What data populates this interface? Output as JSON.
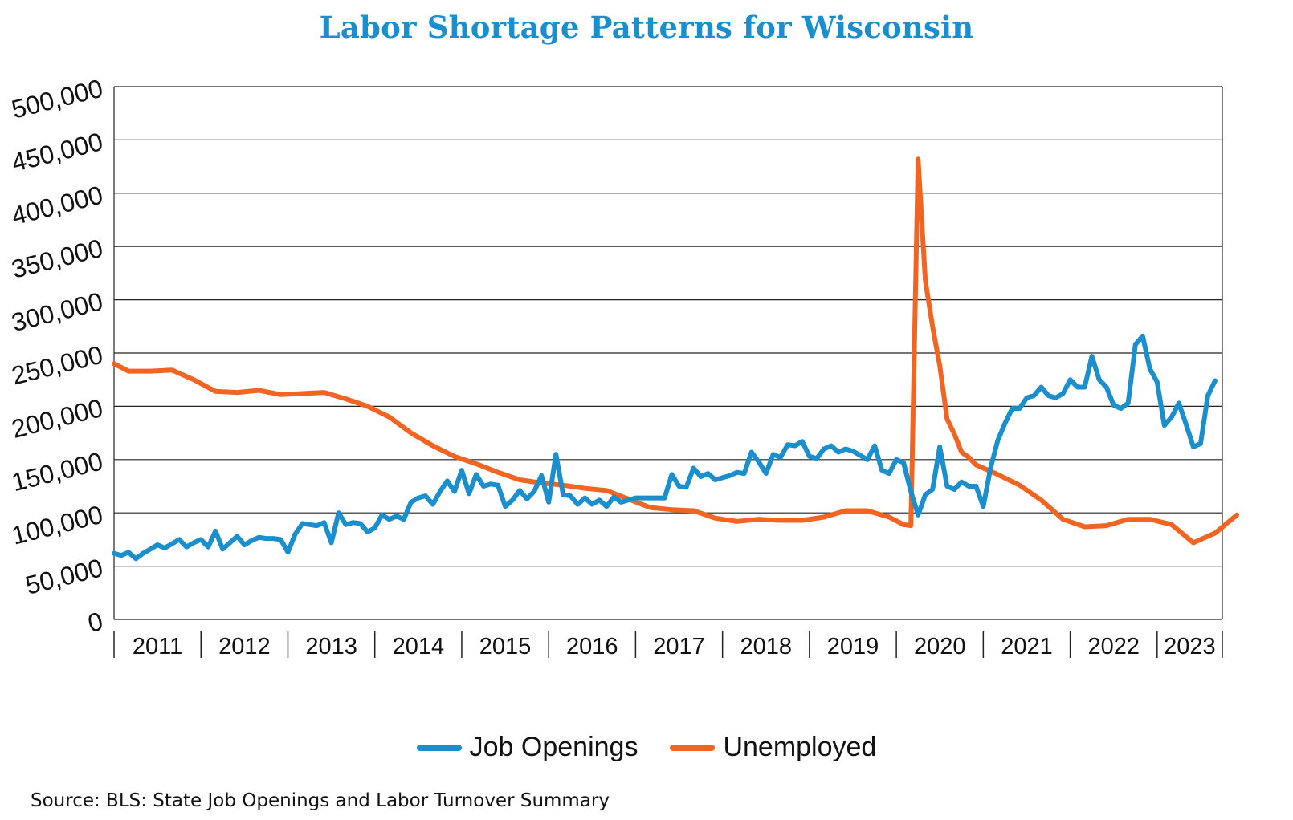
{
  "chart_data": {
    "type": "line",
    "title": "Labor Shortage Patterns for Wisconsin",
    "x_tick_labels": [
      "2011",
      "2012",
      "2013",
      "2014",
      "2015",
      "2016",
      "2017",
      "2018",
      "2019",
      "2020",
      "2021",
      "2022",
      "2023"
    ],
    "y_tick_labels": [
      "0",
      "50,000",
      "100,000",
      "150,000",
      "200,000",
      "250,000",
      "300,000",
      "350,000",
      "400,000",
      "450,000",
      "500,000"
    ],
    "ylim": [
      0,
      500000
    ],
    "grid": true,
    "legend_position": "bottom",
    "series": [
      {
        "name": "Job Openings",
        "color": "#1b8fcd",
        "points": [
          [
            "2011-01",
            62000
          ],
          [
            "2011-02",
            60000
          ],
          [
            "2011-03",
            63000
          ],
          [
            "2011-04",
            57000
          ],
          [
            "2011-05",
            62000
          ],
          [
            "2011-06",
            66000
          ],
          [
            "2011-07",
            70000
          ],
          [
            "2011-08",
            67000
          ],
          [
            "2011-09",
            71000
          ],
          [
            "2011-10",
            75000
          ],
          [
            "2011-11",
            68000
          ],
          [
            "2011-12",
            72000
          ],
          [
            "2012-01",
            75000
          ],
          [
            "2012-02",
            68000
          ],
          [
            "2012-03",
            83000
          ],
          [
            "2012-04",
            66000
          ],
          [
            "2012-05",
            72000
          ],
          [
            "2012-06",
            78000
          ],
          [
            "2012-07",
            70000
          ],
          [
            "2012-08",
            74000
          ],
          [
            "2012-09",
            77000
          ],
          [
            "2012-10",
            76000
          ],
          [
            "2012-11",
            76000
          ],
          [
            "2012-12",
            75000
          ],
          [
            "2013-01",
            63000
          ],
          [
            "2013-02",
            80000
          ],
          [
            "2013-03",
            90000
          ],
          [
            "2013-04",
            89000
          ],
          [
            "2013-05",
            88000
          ],
          [
            "2013-06",
            91000
          ],
          [
            "2013-07",
            72000
          ],
          [
            "2013-08",
            100000
          ],
          [
            "2013-09",
            89000
          ],
          [
            "2013-10",
            91000
          ],
          [
            "2013-11",
            90000
          ],
          [
            "2013-12",
            82000
          ],
          [
            "2014-01",
            86000
          ],
          [
            "2014-02",
            98000
          ],
          [
            "2014-03",
            94000
          ],
          [
            "2014-04",
            97000
          ],
          [
            "2014-05",
            94000
          ],
          [
            "2014-06",
            110000
          ],
          [
            "2014-07",
            114000
          ],
          [
            "2014-08",
            116000
          ],
          [
            "2014-09",
            108000
          ],
          [
            "2014-10",
            120000
          ],
          [
            "2014-11",
            130000
          ],
          [
            "2014-12",
            120000
          ],
          [
            "2015-01",
            140000
          ],
          [
            "2015-02",
            118000
          ],
          [
            "2015-03",
            136000
          ],
          [
            "2015-04",
            125000
          ],
          [
            "2015-05",
            127000
          ],
          [
            "2015-06",
            126000
          ],
          [
            "2015-07",
            106000
          ],
          [
            "2015-08",
            112000
          ],
          [
            "2015-09",
            121000
          ],
          [
            "2015-10",
            113000
          ],
          [
            "2015-11",
            120000
          ],
          [
            "2015-12",
            135000
          ],
          [
            "2016-01",
            110000
          ],
          [
            "2016-02",
            155000
          ],
          [
            "2016-03",
            117000
          ],
          [
            "2016-04",
            116000
          ],
          [
            "2016-05",
            108000
          ],
          [
            "2016-06",
            114000
          ],
          [
            "2016-07",
            108000
          ],
          [
            "2016-08",
            112000
          ],
          [
            "2016-09",
            106000
          ],
          [
            "2016-10",
            115000
          ],
          [
            "2016-11",
            110000
          ],
          [
            "2016-12",
            112000
          ],
          [
            "2017-01",
            114000
          ],
          [
            "2017-02",
            114000
          ],
          [
            "2017-03",
            114000
          ],
          [
            "2017-04",
            114000
          ],
          [
            "2017-05",
            114000
          ],
          [
            "2017-06",
            136000
          ],
          [
            "2017-07",
            125000
          ],
          [
            "2017-08",
            124000
          ],
          [
            "2017-09",
            142000
          ],
          [
            "2017-10",
            134000
          ],
          [
            "2017-11",
            137000
          ],
          [
            "2017-12",
            131000
          ],
          [
            "2018-01",
            133000
          ],
          [
            "2018-02",
            135000
          ],
          [
            "2018-03",
            138000
          ],
          [
            "2018-04",
            137000
          ],
          [
            "2018-05",
            157000
          ],
          [
            "2018-06",
            148000
          ],
          [
            "2018-07",
            137000
          ],
          [
            "2018-08",
            155000
          ],
          [
            "2018-09",
            152000
          ],
          [
            "2018-10",
            164000
          ],
          [
            "2018-11",
            163000
          ],
          [
            "2018-12",
            167000
          ],
          [
            "2019-01",
            153000
          ],
          [
            "2019-02",
            151000
          ],
          [
            "2019-03",
            160000
          ],
          [
            "2019-04",
            163000
          ],
          [
            "2019-05",
            157000
          ],
          [
            "2019-06",
            160000
          ],
          [
            "2019-07",
            158000
          ],
          [
            "2019-08",
            154000
          ],
          [
            "2019-09",
            150000
          ],
          [
            "2019-10",
            163000
          ],
          [
            "2019-11",
            140000
          ],
          [
            "2019-12",
            137000
          ],
          [
            "2020-01",
            150000
          ],
          [
            "2020-02",
            147000
          ],
          [
            "2020-03",
            120000
          ],
          [
            "2020-04",
            98000
          ],
          [
            "2020-05",
            117000
          ],
          [
            "2020-06",
            122000
          ],
          [
            "2020-07",
            162000
          ],
          [
            "2020-08",
            125000
          ],
          [
            "2020-09",
            122000
          ],
          [
            "2020-10",
            129000
          ],
          [
            "2020-11",
            125000
          ],
          [
            "2020-12",
            125000
          ],
          [
            "2021-01",
            106000
          ],
          [
            "2021-02",
            142000
          ],
          [
            "2021-03",
            168000
          ],
          [
            "2021-04",
            184000
          ],
          [
            "2021-05",
            198000
          ],
          [
            "2021-06",
            198000
          ],
          [
            "2021-07",
            208000
          ],
          [
            "2021-08",
            210000
          ],
          [
            "2021-09",
            218000
          ],
          [
            "2021-10",
            210000
          ],
          [
            "2021-11",
            208000
          ],
          [
            "2021-12",
            212000
          ],
          [
            "2022-01",
            225000
          ],
          [
            "2022-02",
            218000
          ],
          [
            "2022-03",
            218000
          ],
          [
            "2022-04",
            247000
          ],
          [
            "2022-05",
            225000
          ],
          [
            "2022-06",
            218000
          ],
          [
            "2022-07",
            201000
          ],
          [
            "2022-08",
            198000
          ],
          [
            "2022-09",
            203000
          ],
          [
            "2022-10",
            258000
          ],
          [
            "2022-11",
            266000
          ],
          [
            "2022-12",
            235000
          ],
          [
            "2023-01",
            223000
          ],
          [
            "2023-02",
            182000
          ],
          [
            "2023-03",
            190000
          ],
          [
            "2023-04",
            203000
          ],
          [
            "2023-05",
            183000
          ],
          [
            "2023-06",
            162000
          ],
          [
            "2023-07",
            165000
          ],
          [
            "2023-08",
            210000
          ],
          [
            "2023-09",
            224000
          ]
        ]
      },
      {
        "name": "Unemployed",
        "color": "#f26422",
        "points": [
          [
            "2011-01",
            240000
          ],
          [
            "2011-03",
            233000
          ],
          [
            "2011-06",
            233000
          ],
          [
            "2011-09",
            234000
          ],
          [
            "2011-12",
            225000
          ],
          [
            "2012-03",
            214000
          ],
          [
            "2012-06",
            213000
          ],
          [
            "2012-09",
            215000
          ],
          [
            "2012-12",
            211000
          ],
          [
            "2013-03",
            212000
          ],
          [
            "2013-06",
            213000
          ],
          [
            "2013-09",
            207000
          ],
          [
            "2013-12",
            200000
          ],
          [
            "2014-03",
            190000
          ],
          [
            "2014-06",
            175000
          ],
          [
            "2014-09",
            163000
          ],
          [
            "2014-12",
            153000
          ],
          [
            "2015-03",
            146000
          ],
          [
            "2015-06",
            138000
          ],
          [
            "2015-09",
            131000
          ],
          [
            "2015-12",
            128000
          ],
          [
            "2016-03",
            126000
          ],
          [
            "2016-06",
            123000
          ],
          [
            "2016-09",
            121000
          ],
          [
            "2016-12",
            113000
          ],
          [
            "2017-03",
            105000
          ],
          [
            "2017-06",
            103000
          ],
          [
            "2017-09",
            102000
          ],
          [
            "2017-12",
            95000
          ],
          [
            "2018-03",
            92000
          ],
          [
            "2018-06",
            94000
          ],
          [
            "2018-09",
            93000
          ],
          [
            "2018-12",
            93000
          ],
          [
            "2019-03",
            96000
          ],
          [
            "2019-06",
            102000
          ],
          [
            "2019-09",
            102000
          ],
          [
            "2019-12",
            96000
          ],
          [
            "2020-02",
            89000
          ],
          [
            "2020-03",
            88000
          ],
          [
            "2020-04",
            432000
          ],
          [
            "2020-05",
            318000
          ],
          [
            "2020-06",
            275000
          ],
          [
            "2020-07",
            238000
          ],
          [
            "2020-08",
            188000
          ],
          [
            "2020-09",
            174000
          ],
          [
            "2020-10",
            157000
          ],
          [
            "2020-11",
            152000
          ],
          [
            "2020-12",
            145000
          ],
          [
            "2021-03",
            136000
          ],
          [
            "2021-06",
            126000
          ],
          [
            "2021-09",
            112000
          ],
          [
            "2021-12",
            94000
          ],
          [
            "2022-03",
            87000
          ],
          [
            "2022-06",
            88000
          ],
          [
            "2022-09",
            94000
          ],
          [
            "2022-12",
            94000
          ],
          [
            "2023-03",
            89000
          ],
          [
            "2023-06",
            72000
          ],
          [
            "2023-09",
            81000
          ],
          [
            "2023-12",
            98000
          ]
        ]
      }
    ]
  },
  "legend": {
    "items": [
      {
        "label": "Job Openings",
        "color": "#1b8fcd"
      },
      {
        "label": "Unemployed",
        "color": "#f26422"
      }
    ]
  },
  "source": "Source: BLS: State Job Openings and Labor Turnover Summary"
}
